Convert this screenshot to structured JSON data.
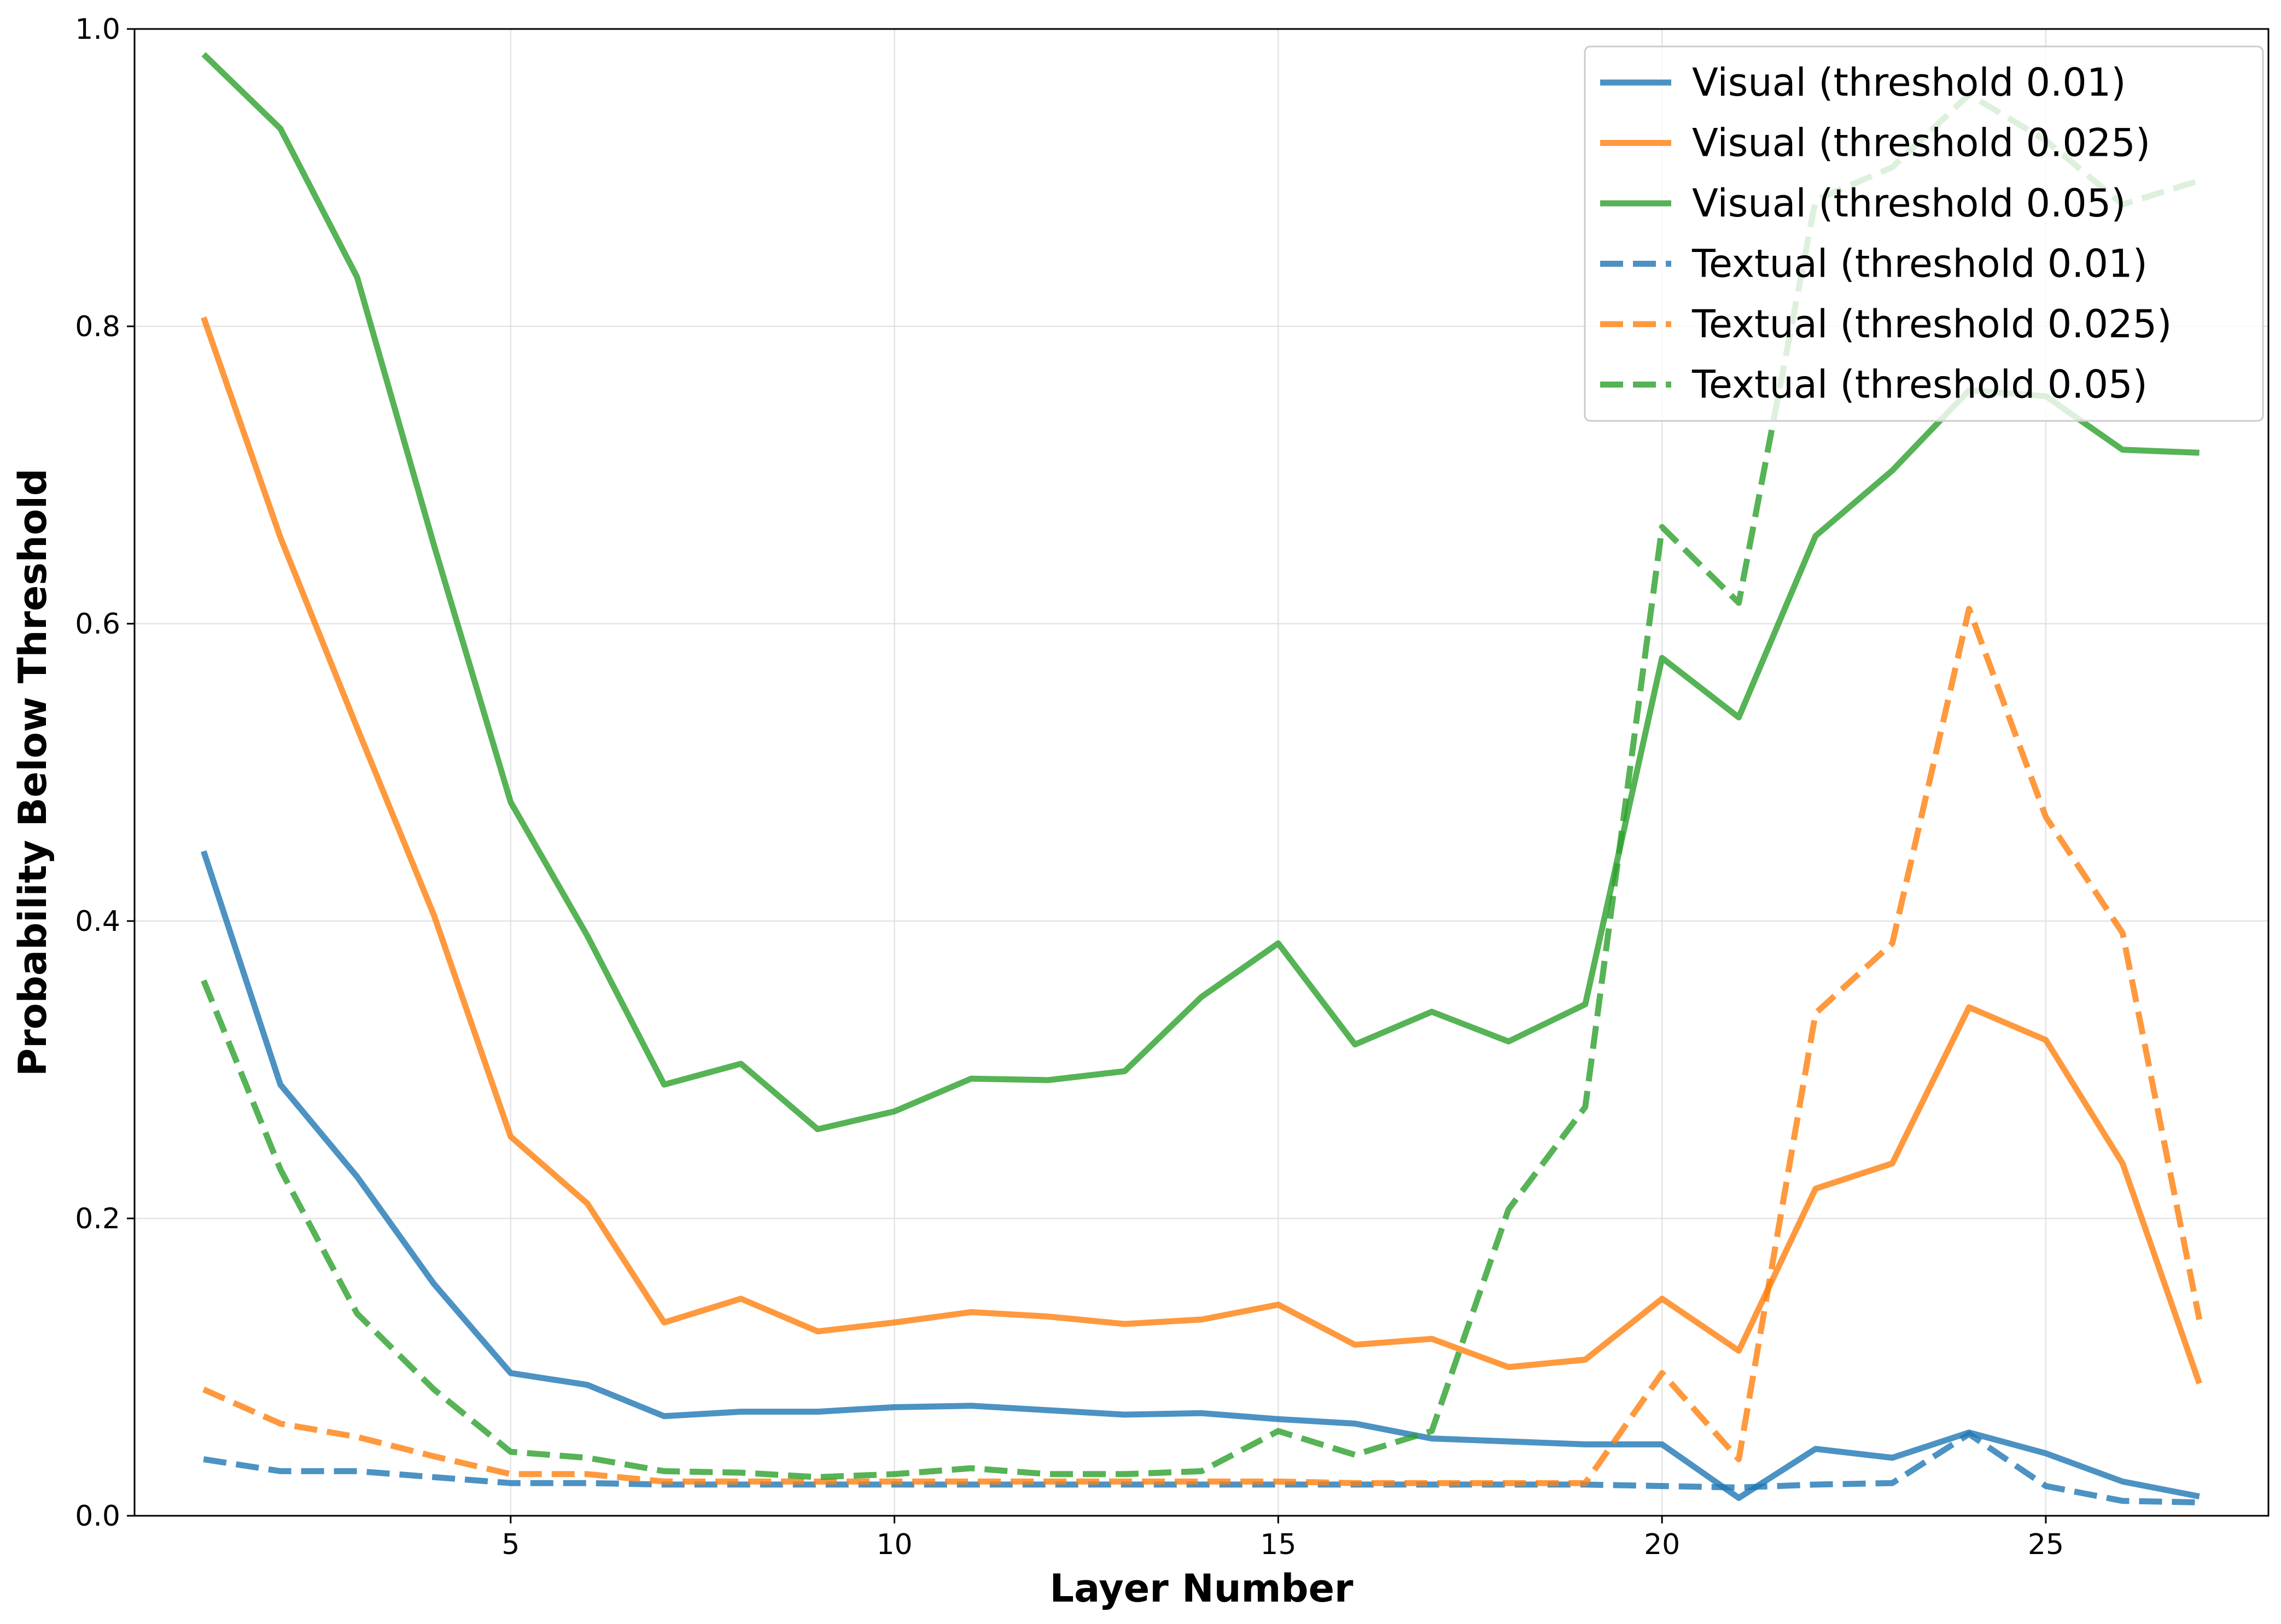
{
  "chart_data": {
    "type": "line",
    "xlabel": "Layer Number",
    "ylabel": "Probability Below Threshold",
    "xlim": [
      0.1,
      27.9
    ],
    "ylim": [
      0.0,
      1.0
    ],
    "xticks": [
      5,
      10,
      15,
      20,
      25
    ],
    "yticks": [
      0.0,
      0.2,
      0.4,
      0.6,
      0.8,
      1.0
    ],
    "xtick_labels": [
      "5",
      "10",
      "15",
      "20",
      "25"
    ],
    "ytick_labels": [
      "0.0",
      "0.2",
      "0.4",
      "0.6",
      "0.8",
      "1.0"
    ],
    "grid": true,
    "legend_position": "top-right",
    "x": [
      1,
      2,
      3,
      4,
      5,
      6,
      7,
      8,
      9,
      10,
      11,
      12,
      13,
      14,
      15,
      16,
      17,
      18,
      19,
      20,
      21,
      22,
      23,
      24,
      25,
      26,
      27
    ],
    "series": [
      {
        "name": "Visual (threshold 0.01)",
        "color": "#1f77b4",
        "style": "solid",
        "values": [
          0.447,
          0.29,
          0.228,
          0.156,
          0.096,
          0.088,
          0.067,
          0.07,
          0.07,
          0.073,
          0.074,
          0.071,
          0.068,
          0.069,
          0.065,
          0.062,
          0.052,
          0.05,
          0.048,
          0.048,
          0.012,
          0.045,
          0.039,
          0.056,
          0.042,
          0.023,
          0.013
        ]
      },
      {
        "name": "Visual (threshold 0.025)",
        "color": "#ff7f0e",
        "style": "solid",
        "values": [
          0.806,
          0.658,
          0.53,
          0.404,
          0.255,
          0.21,
          0.13,
          0.146,
          0.124,
          0.13,
          0.137,
          0.134,
          0.129,
          0.132,
          0.142,
          0.115,
          0.119,
          0.1,
          0.105,
          0.146,
          0.111,
          0.22,
          0.237,
          0.342,
          0.32,
          0.237,
          0.089
        ]
      },
      {
        "name": "Visual (threshold 0.05)",
        "color": "#2ca02c",
        "style": "solid",
        "values": [
          0.983,
          0.933,
          0.833,
          0.653,
          0.48,
          0.39,
          0.29,
          0.304,
          0.26,
          0.272,
          0.294,
          0.293,
          0.299,
          0.349,
          0.385,
          0.317,
          0.339,
          0.319,
          0.344,
          0.577,
          0.537,
          0.659,
          0.703,
          0.757,
          0.753,
          0.717,
          0.715
        ]
      },
      {
        "name": "Textual (threshold 0.01)",
        "color": "#1f77b4",
        "style": "dashed",
        "values": [
          0.038,
          0.03,
          0.03,
          0.026,
          0.022,
          0.022,
          0.021,
          0.021,
          0.021,
          0.021,
          0.021,
          0.021,
          0.021,
          0.021,
          0.021,
          0.021,
          0.021,
          0.021,
          0.021,
          0.02,
          0.019,
          0.021,
          0.022,
          0.055,
          0.02,
          0.01,
          0.009
        ]
      },
      {
        "name": "Textual (threshold 0.025)",
        "color": "#ff7f0e",
        "style": "dashed",
        "values": [
          0.085,
          0.062,
          0.053,
          0.04,
          0.028,
          0.028,
          0.023,
          0.023,
          0.023,
          0.023,
          0.023,
          0.023,
          0.023,
          0.023,
          0.023,
          0.022,
          0.022,
          0.022,
          0.022,
          0.096,
          0.038,
          0.338,
          0.385,
          0.61,
          0.47,
          0.392,
          0.132
        ]
      },
      {
        "name": "Textual (threshold 0.05)",
        "color": "#2ca02c",
        "style": "dashed",
        "values": [
          0.36,
          0.233,
          0.136,
          0.085,
          0.043,
          0.039,
          0.03,
          0.029,
          0.026,
          0.028,
          0.032,
          0.028,
          0.028,
          0.03,
          0.057,
          0.041,
          0.057,
          0.206,
          0.275,
          0.665,
          0.614,
          0.885,
          0.907,
          0.956,
          0.925,
          0.882,
          0.898
        ]
      }
    ]
  }
}
